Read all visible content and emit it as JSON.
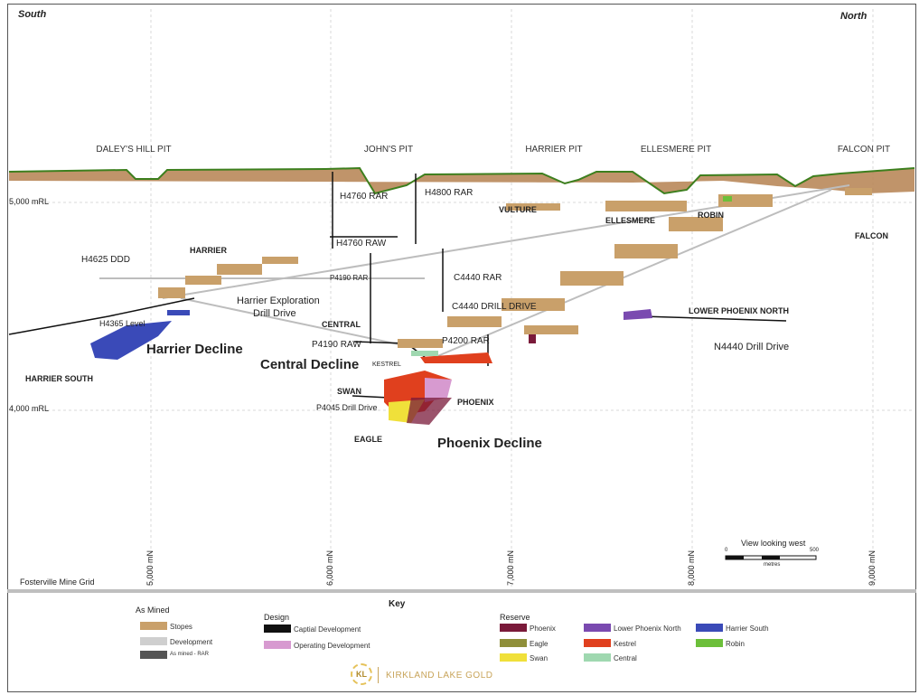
{
  "orientation": {
    "left": "South",
    "right": "North"
  },
  "pits": [
    "DALEY'S HILL PIT",
    "JOHN'S PIT",
    "HARRIER PIT",
    "ELLESMERE PIT",
    "FALCON PIT"
  ],
  "levels": {
    "upper": "5,000 mRL",
    "lower": "4,000 mRL"
  },
  "eastings": [
    "5,000 mN",
    "6,000 mN",
    "7,000 mN",
    "8,000 mN",
    "9,000 mN"
  ],
  "grid_label": "Fosterville Mine Grid",
  "zones": {
    "harrier": "HARRIER",
    "harrier_south": "HARRIER SOUTH",
    "vulture": "VULTURE",
    "ellesmere": "ELLESMERE",
    "robin": "ROBIN",
    "falcon": "FALCON",
    "central": "CENTRAL",
    "kestrel": "KESTREL",
    "swan": "SWAN",
    "phoenix": "PHOENIX",
    "eagle": "EAGLE",
    "lower_phoenix_north": "LOWER PHOENIX NORTH"
  },
  "workings": {
    "h4760_rar": "H4760 RAR",
    "h4800_rar": "H4800 RAR",
    "h4760_raw": "H4760 RAW",
    "h4625_ddd": "H4625 DDD",
    "p4190_rar": "P4190 RAR",
    "c4440_rar": "C4440 RAR",
    "c4440_drill": "C4440 DRILL DRIVE",
    "harrier_expl": "Harrier Exploration",
    "drill_drive": "Drill Drive",
    "h4365_level": "H4365 Level",
    "p4190_raw": "P4190 RAW",
    "p4200_rar": "P4200 RAR",
    "p4045": "P4045 Drill Drive",
    "n4440": "N4440 Drill Drive"
  },
  "declines": {
    "harrier": "Harrier Decline",
    "central": "Central Decline",
    "phoenix": "Phoenix Decline"
  },
  "scale": {
    "title": "View looking west",
    "zero": "0",
    "max": "500",
    "unit": "metres"
  },
  "key": {
    "title": "Key",
    "as_mined": {
      "heading": "As Mined",
      "items": [
        {
          "label": "Stopes",
          "color": "#c9a06a"
        },
        {
          "label": "Development",
          "color": "#cfcfcf"
        },
        {
          "label": "As mined - RAR",
          "color": "#555555"
        }
      ]
    },
    "design": {
      "heading": "Design",
      "items": [
        {
          "label": "Captial Development",
          "color": "#111111"
        },
        {
          "label": "Operating Development",
          "color": "#d79ad0"
        }
      ]
    },
    "reserve": {
      "heading": "Reserve",
      "items": [
        {
          "label": "Phoenix",
          "color": "#7a1a3a"
        },
        {
          "label": "Eagle",
          "color": "#8f8f3a"
        },
        {
          "label": "Swan",
          "color": "#f0e03a"
        },
        {
          "label": "Lower Phoenix North",
          "color": "#7a4ab0"
        },
        {
          "label": "Kestrel",
          "color": "#e0401e"
        },
        {
          "label": "Central",
          "color": "#9fd8b0"
        },
        {
          "label": "Harrier South",
          "color": "#3a4ab8"
        },
        {
          "label": "Robin",
          "color": "#6cbf3a"
        }
      ]
    }
  },
  "logo": {
    "initials": "KL",
    "company": "KIRKLAND LAKE GOLD"
  },
  "colors": {
    "surface_line": "#3d7f1e",
    "pit_fill": "#b9885a",
    "stope": "#c9a06a"
  }
}
